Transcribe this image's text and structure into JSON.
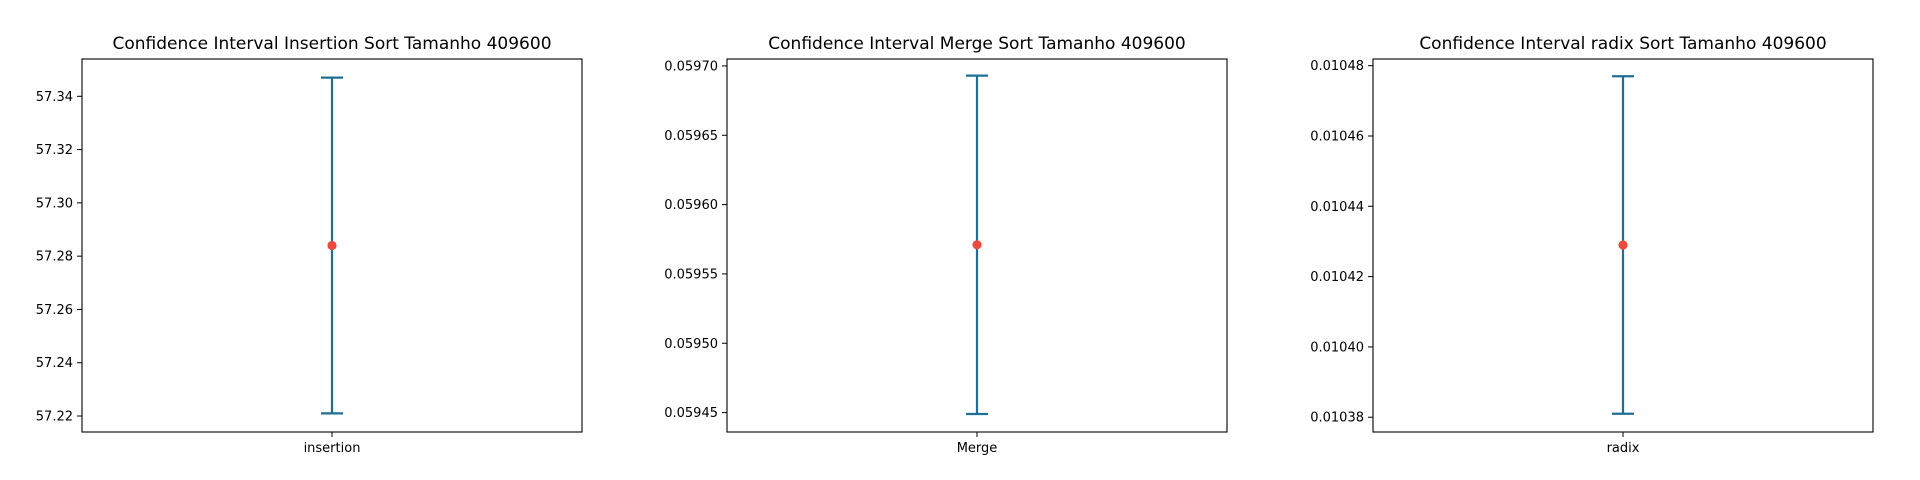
{
  "colors": {
    "interval": "#1f6f94",
    "mean": "#ee4b3e",
    "frame": "#000000",
    "background": "#ffffff"
  },
  "chart_data": [
    {
      "type": "errorbar",
      "title": "Confidence Interval Insertion Sort Tamanho 409600",
      "categories": [
        "insertion"
      ],
      "series": [
        {
          "mean": 57.284,
          "lower": 57.221,
          "upper": 57.347
        }
      ],
      "ylim": [
        57.214,
        57.354
      ],
      "yticks": [
        57.22,
        57.24,
        57.26,
        57.28,
        57.3,
        57.32,
        57.34
      ],
      "ytick_labels": [
        "57.22",
        "57.24",
        "57.26",
        "57.28",
        "57.30",
        "57.32",
        "57.34"
      ],
      "grid": false
    },
    {
      "type": "errorbar",
      "title": "Confidence Interval Merge Sort Tamanho 409600",
      "categories": [
        "Merge"
      ],
      "series": [
        {
          "mean": 0.059571,
          "lower": 0.059449,
          "upper": 0.059693
        }
      ],
      "ylim": [
        0.059436,
        0.059705
      ],
      "yticks": [
        0.05945,
        0.0595,
        0.05955,
        0.0596,
        0.05965,
        0.0597
      ],
      "ytick_labels": [
        "0.05945",
        "0.05950",
        "0.05955",
        "0.05960",
        "0.05965",
        "0.05970"
      ],
      "grid": false
    },
    {
      "type": "errorbar",
      "title": "Confidence Interval radix Sort Tamanho 409600",
      "categories": [
        "radix"
      ],
      "series": [
        {
          "mean": 0.010429,
          "lower": 0.010381,
          "upper": 0.010477
        }
      ],
      "ylim": [
        0.0103758,
        0.0104819
      ],
      "yticks": [
        0.01038,
        0.0104,
        0.01042,
        0.01044,
        0.01046,
        0.01048
      ],
      "ytick_labels": [
        "0.01038",
        "0.01040",
        "0.01042",
        "0.01044",
        "0.01046",
        "0.01048"
      ],
      "grid": false
    }
  ]
}
